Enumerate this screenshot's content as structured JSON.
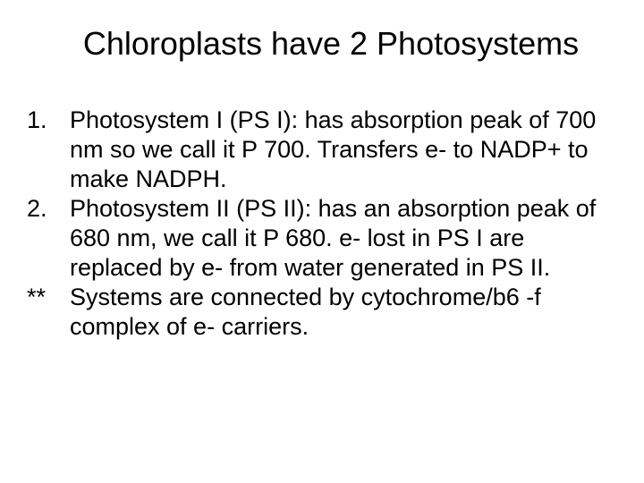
{
  "slide": {
    "title": "Chloroplasts have 2 Photosystems",
    "items": [
      {
        "marker": "1.",
        "text": "Photosystem I (PS I): has absorption peak of 700 nm so we call it P 700.  Transfers e- to NADP+ to make NADPH."
      },
      {
        "marker": "2.",
        "text": "Photosystem II (PS II): has an absorption peak of 680 nm, we call it P 680.  e- lost in PS I are replaced by e- from water generated in PS II."
      }
    ],
    "note": {
      "marker": "**",
      "text": "Systems are connected by cytochrome/b6 -f complex of e- carriers."
    },
    "title_fontsize": 36,
    "body_fontsize": 27,
    "font_family": "Arial",
    "text_color": "#000000",
    "background_color": "#ffffff"
  }
}
